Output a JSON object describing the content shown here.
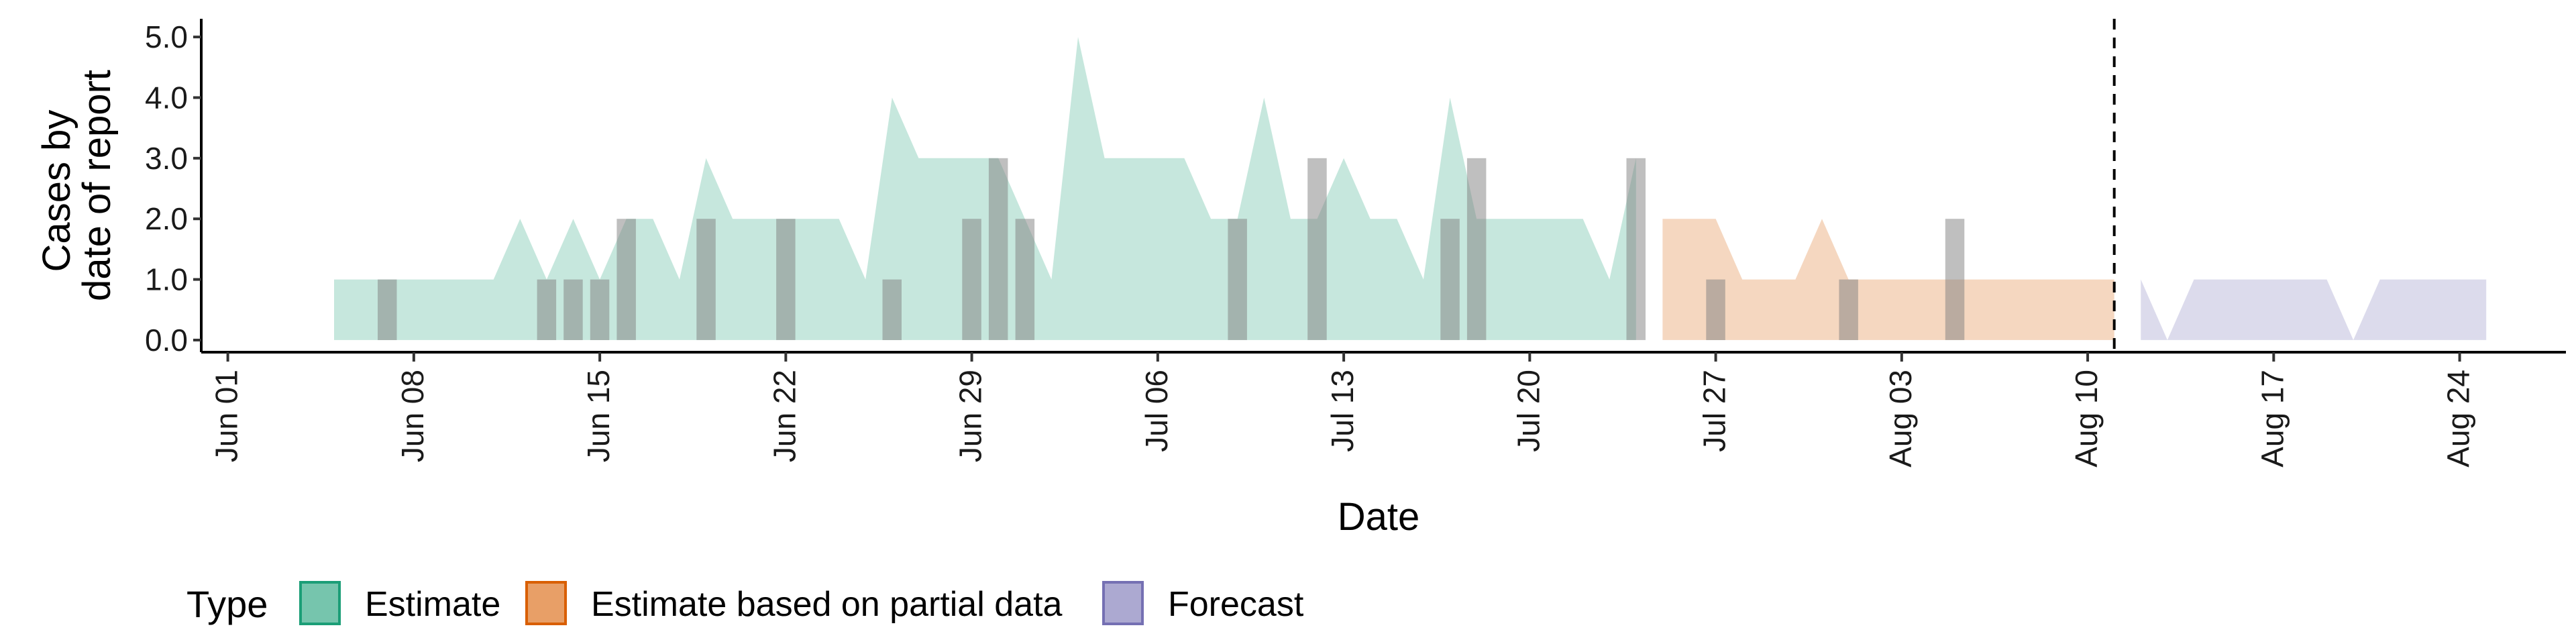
{
  "chart_data": {
    "type": "area",
    "xlabel": "Date",
    "ylabel": [
      "Cases by",
      "date of report"
    ],
    "ylim": [
      0,
      5
    ],
    "yticks": [
      0,
      1,
      2,
      3,
      4,
      5
    ],
    "ytick_labels": [
      "0.0",
      "1.0",
      "2.0",
      "3.0",
      "4.0",
      "5.0"
    ],
    "xlim": [
      "2020-05-31",
      "2020-08-28"
    ],
    "xticks": [
      "2020-06-01",
      "2020-06-08",
      "2020-06-15",
      "2020-06-22",
      "2020-06-29",
      "2020-07-06",
      "2020-07-13",
      "2020-07-20",
      "2020-07-27",
      "2020-08-03",
      "2020-08-10",
      "2020-08-17",
      "2020-08-24"
    ],
    "xtick_labels": [
      "Jun 01",
      "Jun 08",
      "Jun 15",
      "Jun 22",
      "Jun 29",
      "Jul 06",
      "Jul 13",
      "Jul 20",
      "Jul 27",
      "Aug 03",
      "Aug 10",
      "Aug 17",
      "Aug 24"
    ],
    "reference_line_date": "2020-08-11",
    "legend": {
      "title": "Type",
      "position": "bottom",
      "items": [
        {
          "label": "Estimate",
          "color": "#1b9e77"
        },
        {
          "label": "Estimate based on partial data",
          "color": "#d95f02"
        },
        {
          "label": "Forecast",
          "color": "#7570b3"
        }
      ]
    },
    "series": [
      {
        "name": "Estimate",
        "color": "#1b9e77",
        "fill_opacity": 0.25,
        "dates": [
          "2020-06-05",
          "2020-06-06",
          "2020-06-07",
          "2020-06-08",
          "2020-06-09",
          "2020-06-10",
          "2020-06-11",
          "2020-06-12",
          "2020-06-13",
          "2020-06-14",
          "2020-06-15",
          "2020-06-16",
          "2020-06-17",
          "2020-06-18",
          "2020-06-19",
          "2020-06-20",
          "2020-06-21",
          "2020-06-22",
          "2020-06-23",
          "2020-06-24",
          "2020-06-25",
          "2020-06-26",
          "2020-06-27",
          "2020-06-28",
          "2020-06-29",
          "2020-06-30",
          "2020-07-01",
          "2020-07-02",
          "2020-07-03",
          "2020-07-04",
          "2020-07-05",
          "2020-07-06",
          "2020-07-07",
          "2020-07-08",
          "2020-07-09",
          "2020-07-10",
          "2020-07-11",
          "2020-07-12",
          "2020-07-13",
          "2020-07-14",
          "2020-07-15",
          "2020-07-16",
          "2020-07-17",
          "2020-07-18",
          "2020-07-19",
          "2020-07-20",
          "2020-07-21",
          "2020-07-22",
          "2020-07-23",
          "2020-07-24"
        ],
        "values": [
          1,
          1,
          1,
          1,
          1,
          1,
          1,
          2,
          1,
          2,
          1,
          2,
          2,
          1,
          3,
          2,
          2,
          2,
          2,
          2,
          1,
          4,
          3,
          3,
          3,
          3,
          2,
          1,
          5,
          3,
          3,
          3,
          3,
          2,
          2,
          4,
          2,
          2,
          3,
          2,
          2,
          1,
          4,
          2,
          2,
          2,
          2,
          2,
          1,
          3
        ]
      },
      {
        "name": "Estimate based on partial data",
        "color": "#d95f02",
        "fill_opacity": 0.25,
        "dates": [
          "2020-07-25",
          "2020-07-26",
          "2020-07-27",
          "2020-07-28",
          "2020-07-29",
          "2020-07-30",
          "2020-07-31",
          "2020-08-01",
          "2020-08-02",
          "2020-08-03",
          "2020-08-04",
          "2020-08-05",
          "2020-08-06",
          "2020-08-07",
          "2020-08-08",
          "2020-08-09",
          "2020-08-10",
          "2020-08-11"
        ],
        "values": [
          2,
          2,
          2,
          1,
          1,
          1,
          2,
          1,
          1,
          1,
          1,
          1,
          1,
          1,
          1,
          1,
          1,
          1
        ]
      },
      {
        "name": "Forecast",
        "color": "#7570b3",
        "fill_opacity": 0.25,
        "dates": [
          "2020-08-12",
          "2020-08-13",
          "2020-08-14",
          "2020-08-15",
          "2020-08-16",
          "2020-08-17",
          "2020-08-18",
          "2020-08-19",
          "2020-08-20",
          "2020-08-21",
          "2020-08-22",
          "2020-08-23",
          "2020-08-24",
          "2020-08-25"
        ],
        "values": [
          1,
          0,
          1,
          1,
          1,
          1,
          1,
          1,
          0,
          1,
          1,
          1,
          1,
          1
        ]
      }
    ],
    "observed_bars": {
      "color": "#808080",
      "opacity": 0.5,
      "dates": [
        "2020-06-07",
        "2020-06-13",
        "2020-06-14",
        "2020-06-15",
        "2020-06-16",
        "2020-06-19",
        "2020-06-22",
        "2020-06-26",
        "2020-06-29",
        "2020-06-30",
        "2020-07-01",
        "2020-07-09",
        "2020-07-12",
        "2020-07-17",
        "2020-07-18",
        "2020-07-24",
        "2020-07-27",
        "2020-08-01",
        "2020-08-05"
      ],
      "values": [
        1,
        1,
        1,
        1,
        2,
        2,
        2,
        1,
        2,
        3,
        2,
        2,
        3,
        2,
        3,
        3,
        1,
        1,
        2
      ]
    }
  }
}
